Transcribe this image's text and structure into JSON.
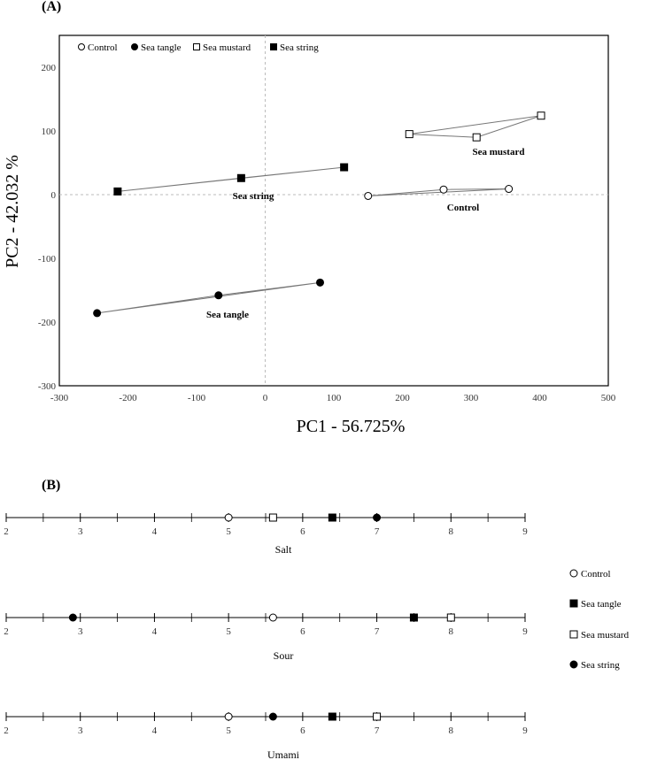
{
  "chart_data": [
    {
      "panel": "(A)",
      "type": "scatter",
      "xlabel": "PC1 - 56.725%",
      "ylabel": "PC2 - 42.032 %",
      "xlim": [
        -300,
        500
      ],
      "ylim": [
        -300,
        250
      ],
      "xticks": [
        -300,
        -200,
        -100,
        0,
        100,
        200,
        300,
        400,
        500
      ],
      "yticks": [
        -300,
        -200,
        -100,
        0,
        100,
        200
      ],
      "legend": [
        "Control",
        "Sea tangle",
        "Sea mustard",
        "Sea string"
      ],
      "series": [
        {
          "name": "Control",
          "marker": "open-circle",
          "label": "Control",
          "x": [
            150,
            260,
            355
          ],
          "y": [
            -2,
            8,
            9
          ]
        },
        {
          "name": "Sea tangle",
          "marker": "filled-circle",
          "label": "Sea tangle",
          "x": [
            -245,
            -68,
            80
          ],
          "y": [
            -186,
            -158,
            -138
          ]
        },
        {
          "name": "Sea mustard",
          "marker": "open-square",
          "label": "Sea mustard",
          "x": [
            210,
            308,
            402
          ],
          "y": [
            95,
            90,
            124
          ]
        },
        {
          "name": "Sea string",
          "marker": "filled-square",
          "label": "Sea string",
          "x": [
            -215,
            -35,
            115
          ],
          "y": [
            5,
            26,
            43
          ]
        }
      ]
    },
    {
      "panel": "(B)",
      "type": "scatter",
      "xlim": [
        2,
        9
      ],
      "ticks": [
        2,
        3,
        4,
        5,
        6,
        7,
        8,
        9
      ],
      "scales": [
        {
          "name": "Salt",
          "values": {
            "Control": 5.0,
            "Sea tangle": 6.4,
            "Sea mustard": 5.6,
            "Sea string": 7.0
          }
        },
        {
          "name": "Sour",
          "values": {
            "Control": 5.6,
            "Sea tangle": 7.5,
            "Sea mustard": 8.0,
            "Sea string": 2.9
          }
        },
        {
          "name": "Umami",
          "values": {
            "Control": 5.0,
            "Sea tangle": 6.4,
            "Sea mustard": 7.0,
            "Sea string": 5.6
          }
        }
      ],
      "legend": [
        {
          "name": "Control",
          "marker": "open-circle"
        },
        {
          "name": "Sea tangle",
          "marker": "filled-square"
        },
        {
          "name": "Sea mustard",
          "marker": "open-square"
        },
        {
          "name": "Sea string",
          "marker": "filled-circle"
        }
      ]
    }
  ]
}
